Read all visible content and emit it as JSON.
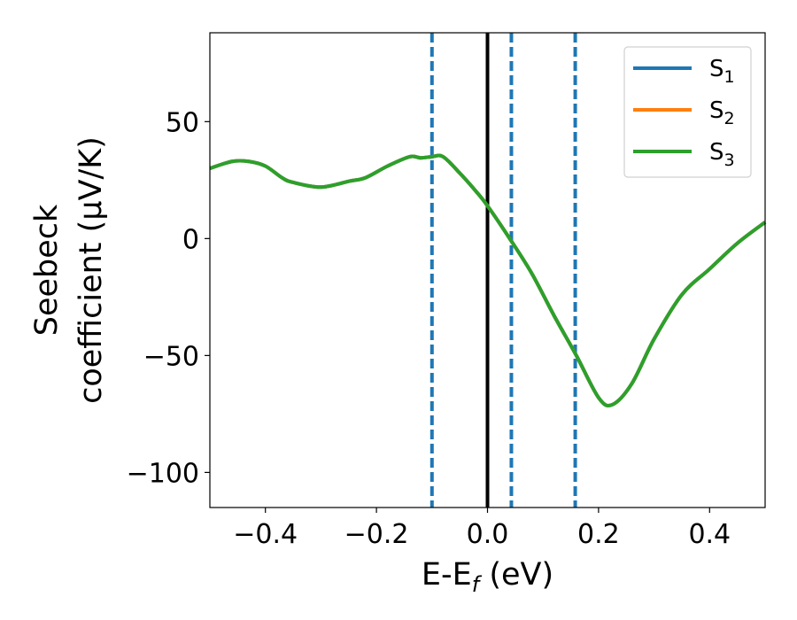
{
  "chart_data": {
    "type": "line",
    "xlabel": "E-E",
    "xlabel_sub": "f",
    "xlabel_unit": " (eV)",
    "ylabel_line1": "Seebeck",
    "ylabel_line2": "coefficient  (μV/K)",
    "xlim": [
      -0.5,
      0.5
    ],
    "ylim": [
      -115,
      88
    ],
    "xticks": [
      -0.4,
      -0.2,
      0.0,
      0.2,
      0.4
    ],
    "xtick_labels": [
      "−0.4",
      "−0.2",
      "0.0",
      "0.2",
      "0.4"
    ],
    "yticks": [
      50,
      0,
      -50,
      -100
    ],
    "ytick_labels": [
      "50",
      "0",
      "−50",
      "−100"
    ],
    "grid": false,
    "legend_position": "top-right",
    "series": [
      {
        "name": "S",
        "sub": "1",
        "color": "#1f77b4",
        "x": [
          -0.5,
          -0.46,
          -0.43,
          -0.4,
          -0.37,
          -0.35,
          -0.3,
          -0.25,
          -0.22,
          -0.18,
          -0.14,
          -0.12,
          -0.1,
          -0.08,
          -0.05,
          -0.02,
          0.0,
          0.04,
          0.08,
          0.12,
          0.16,
          0.2,
          0.225,
          0.26,
          0.3,
          0.35,
          0.4,
          0.45,
          0.5
        ],
        "y": [
          30,
          33,
          33,
          31,
          26,
          24,
          22,
          24.5,
          26,
          31,
          35,
          34.5,
          35,
          35,
          28,
          20,
          14,
          0,
          -15,
          -33,
          -50,
          -68,
          -71,
          -62,
          -43,
          -24,
          -13,
          -2,
          7
        ]
      },
      {
        "name": "S",
        "sub": "2",
        "color": "#ff7f0e",
        "x": [
          -0.5,
          -0.46,
          -0.43,
          -0.4,
          -0.37,
          -0.35,
          -0.3,
          -0.25,
          -0.22,
          -0.18,
          -0.14,
          -0.12,
          -0.1,
          -0.08,
          -0.05,
          -0.02,
          0.0,
          0.04,
          0.08,
          0.12,
          0.16,
          0.2,
          0.225,
          0.26,
          0.3,
          0.35,
          0.4,
          0.45,
          0.5
        ],
        "y": [
          30,
          33,
          33,
          31,
          26,
          24,
          22,
          24.5,
          26,
          31,
          35,
          34.5,
          35,
          35,
          28,
          20,
          14,
          0,
          -15,
          -33,
          -50,
          -68,
          -71,
          -62,
          -43,
          -24,
          -13,
          -2,
          7
        ]
      },
      {
        "name": "S",
        "sub": "3",
        "color": "#2ca02c",
        "x": [
          -0.5,
          -0.46,
          -0.43,
          -0.4,
          -0.37,
          -0.35,
          -0.3,
          -0.25,
          -0.22,
          -0.18,
          -0.14,
          -0.12,
          -0.1,
          -0.08,
          -0.05,
          -0.02,
          0.0,
          0.04,
          0.08,
          0.12,
          0.16,
          0.2,
          0.225,
          0.26,
          0.3,
          0.35,
          0.4,
          0.45,
          0.5
        ],
        "y": [
          30,
          33,
          33,
          31,
          26,
          24,
          22,
          24.5,
          26,
          31,
          35,
          34.5,
          35,
          35,
          28,
          20,
          14,
          0,
          -15,
          -33,
          -50,
          -68,
          -71,
          -62,
          -43,
          -24,
          -13,
          -2,
          7
        ]
      }
    ],
    "vlines": [
      {
        "x": -0.1,
        "style": "dashed",
        "color": "#1f77b4"
      },
      {
        "x": 0.0,
        "style": "solid",
        "color": "#000000"
      },
      {
        "x": 0.043,
        "style": "dashed",
        "color": "#1f77b4"
      },
      {
        "x": 0.158,
        "style": "dashed",
        "color": "#1f77b4"
      }
    ]
  }
}
